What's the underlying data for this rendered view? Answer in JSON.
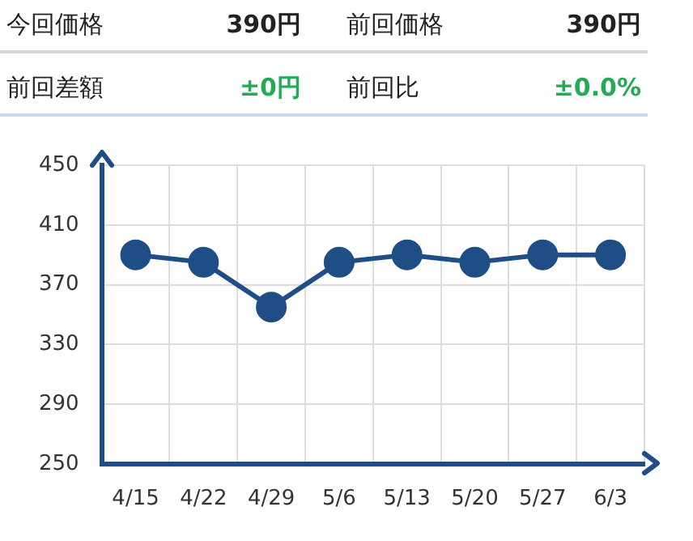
{
  "chart_data": {
    "type": "line",
    "annotations": [
      "今回価格",
      "390円",
      "前回価格",
      "390円",
      "前回差額",
      "±0円",
      "前回比",
      "±0.0%"
    ],
    "categories": [
      "4/15",
      "4/22",
      "4/29",
      "5/6",
      "5/13",
      "5/20",
      "5/27",
      "6/3"
    ],
    "series": [
      {
        "color": "#1f4e87",
        "values": [
          390,
          385,
          355,
          385,
          390,
          385,
          390,
          390
        ]
      }
    ],
    "ylim": [
      250,
      450
    ],
    "yticks": [
      250,
      290,
      330,
      370,
      410,
      450
    ],
    "grid": true,
    "legend": false,
    "marker": "circle",
    "line_style": "solid"
  }
}
